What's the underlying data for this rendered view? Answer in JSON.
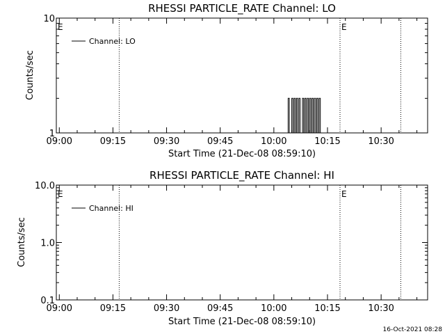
{
  "background": "#ffffff",
  "foreground": "#000000",
  "footer": {
    "timestamp": "16-Oct-2021 08:28"
  },
  "chart_data": [
    {
      "type": "line",
      "title": "RHESSI PARTICLE_RATE Channel: LO",
      "xlabel": "Start Time (21-Dec-08 08:59:10)",
      "ylabel": "Counts/sec",
      "xlim": [
        "08:59:10",
        "10:43:00"
      ],
      "ylim": [
        1,
        10
      ],
      "yscale": "log",
      "xticks": [
        "09:00",
        "09:15",
        "09:30",
        "09:45",
        "10:00",
        "10:15",
        "10:30"
      ],
      "yticks": [
        "1",
        "10"
      ],
      "legend": {
        "label": "Channel: LO",
        "position": "top-left"
      },
      "event_markers": [
        {
          "time": "09:16:45",
          "label": ""
        },
        {
          "time": "10:18:30",
          "label": "E"
        },
        {
          "time": "10:35:30",
          "label": ""
        },
        {
          "time": "08:59:10",
          "label": "E"
        }
      ],
      "series": [
        {
          "name": "Channel: LO",
          "style": "histogram",
          "x": [
            "10:03:40",
            "10:04:00",
            "10:04:20",
            "10:04:40",
            "10:05:00",
            "10:05:20",
            "10:05:40",
            "10:06:00",
            "10:06:20",
            "10:06:40",
            "10:07:00",
            "10:07:20",
            "10:07:40",
            "10:08:00",
            "10:08:20",
            "10:08:40",
            "10:09:00",
            "10:09:20",
            "10:09:40",
            "10:10:00",
            "10:10:20",
            "10:10:40",
            "10:11:00",
            "10:11:20",
            "10:11:40",
            "10:12:00",
            "10:12:20",
            "10:12:40",
            "10:13:00"
          ],
          "y": [
            1,
            2,
            1,
            1,
            2,
            1,
            2,
            1,
            2,
            1,
            2,
            1,
            1,
            2,
            1,
            2,
            1,
            2,
            1,
            2,
            1,
            2,
            1,
            2,
            1,
            2,
            1,
            2,
            1
          ]
        }
      ]
    },
    {
      "type": "line",
      "title": "RHESSI PARTICLE_RATE Channel: HI",
      "xlabel": "Start Time (21-Dec-08 08:59:10)",
      "ylabel": "Counts/sec",
      "xlim": [
        "08:59:10",
        "10:43:00"
      ],
      "ylim": [
        0.1,
        10
      ],
      "yscale": "log",
      "xticks": [
        "09:00",
        "09:15",
        "09:30",
        "09:45",
        "10:00",
        "10:15",
        "10:30"
      ],
      "yticks": [
        "0.1",
        "1.0",
        "10.0"
      ],
      "legend": {
        "label": "Channel: HI",
        "position": "top-left"
      },
      "event_markers": [
        {
          "time": "09:16:45",
          "label": ""
        },
        {
          "time": "10:18:30",
          "label": "E"
        },
        {
          "time": "10:35:30",
          "label": ""
        },
        {
          "time": "08:59:10",
          "label": "E"
        }
      ],
      "series": [
        {
          "name": "Channel: HI",
          "style": "histogram",
          "x": [],
          "y": []
        }
      ]
    }
  ]
}
